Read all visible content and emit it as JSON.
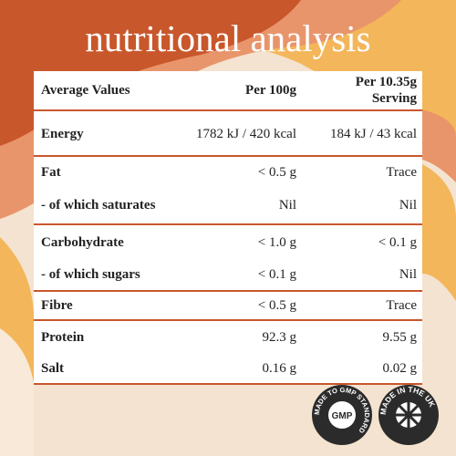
{
  "title": "nutritional analysis",
  "table": {
    "header": [
      "Average Values",
      "Per 100g",
      "Per 10.35g Serving"
    ],
    "rows": [
      [
        "Energy",
        "1782 kJ / 420 kcal",
        "184 kJ / 43 kcal"
      ],
      [
        "Fat",
        "< 0.5 g",
        "Trace"
      ],
      [
        "- of which saturates",
        "Nil",
        "Nil"
      ],
      [
        "Carbohydrate",
        "< 1.0 g",
        "< 0.1 g"
      ],
      [
        "- of which sugars",
        "< 0.1 g",
        "Nil"
      ],
      [
        "Fibre",
        "< 0.5 g",
        "Trace"
      ],
      [
        "Protein",
        "92.3 g",
        "9.55 g"
      ],
      [
        "Salt",
        "0.16 g",
        "0.02 g"
      ]
    ]
  },
  "badges": [
    {
      "ring": "MADE TO GMP STANDARD",
      "center": "GMP"
    },
    {
      "ring": "MADE IN THE UK"
    }
  ]
}
